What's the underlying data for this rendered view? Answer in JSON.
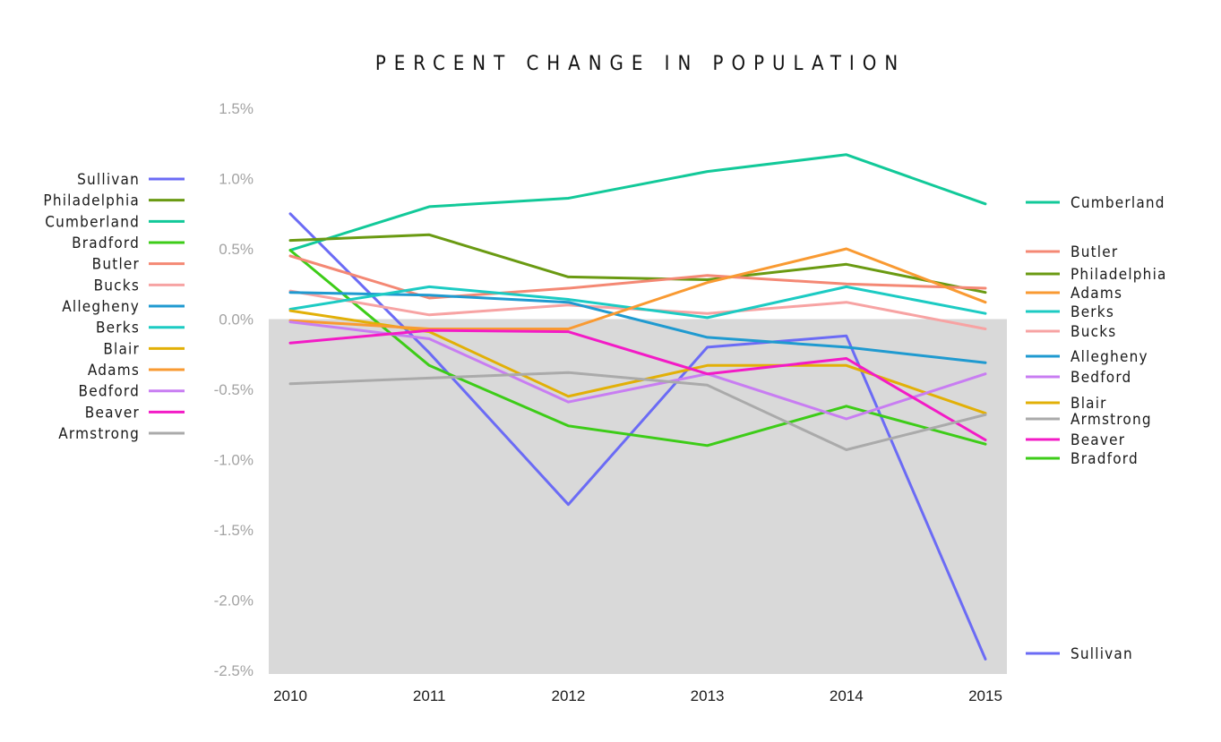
{
  "chart_data": {
    "type": "line",
    "title": "PERCENT CHANGE IN POPULATION",
    "x": [
      "2010",
      "2011",
      "2012",
      "2013",
      "2014",
      "2015"
    ],
    "ylim": [
      -2.5,
      1.5
    ],
    "yticks": [
      1.5,
      1.0,
      0.5,
      0.0,
      -0.5,
      -1.0,
      -1.5,
      -2.0,
      -2.5
    ],
    "ytick_labels": [
      "1.5%",
      "1.0%",
      "0.5%",
      "0.0%",
      "-0.5%",
      "-1.0%",
      "-1.5%",
      "-2.0%",
      "-2.5%"
    ],
    "negative_region_shaded": true,
    "shade_color": "#d9d9d9",
    "legend_left_order": [
      "Sullivan",
      "Philadelphia",
      "Cumberland",
      "Bradford",
      "Butler",
      "Bucks",
      "Allegheny",
      "Berks",
      "Blair",
      "Adams",
      "Bedford",
      "Beaver",
      "Armstrong"
    ],
    "legend_right_order": [
      "Cumberland",
      "Butler",
      "Philadelphia",
      "Adams",
      "Berks",
      "Bucks",
      "Allegheny",
      "Bedford",
      "Blair",
      "Armstrong",
      "Beaver",
      "Bradford",
      "Sullivan"
    ],
    "series": [
      {
        "name": "Sullivan",
        "color": "#6b6bf5",
        "values": [
          0.75,
          -0.24,
          -1.32,
          -0.2,
          -0.12,
          -2.42
        ]
      },
      {
        "name": "Cumberland",
        "color": "#12c999",
        "values": [
          0.49,
          0.8,
          0.86,
          1.05,
          1.17,
          0.82
        ]
      },
      {
        "name": "Philadelphia",
        "color": "#6a9a12",
        "values": [
          0.56,
          0.6,
          0.3,
          0.28,
          0.39,
          0.19
        ]
      },
      {
        "name": "Bradford",
        "color": "#3dcc18",
        "values": [
          0.49,
          -0.33,
          -0.76,
          -0.9,
          -0.62,
          -0.89
        ]
      },
      {
        "name": "Butler",
        "color": "#f48874",
        "values": [
          0.45,
          0.15,
          0.22,
          0.31,
          0.25,
          0.22
        ]
      },
      {
        "name": "Bucks",
        "color": "#f7a3a3",
        "values": [
          0.2,
          0.03,
          0.1,
          0.04,
          0.12,
          -0.07
        ]
      },
      {
        "name": "Allegheny",
        "color": "#1f9ad0",
        "values": [
          0.19,
          0.17,
          0.12,
          -0.13,
          -0.2,
          -0.31
        ]
      },
      {
        "name": "Berks",
        "color": "#1ccbc3",
        "values": [
          0.07,
          0.23,
          0.14,
          0.01,
          0.23,
          0.04
        ]
      },
      {
        "name": "Blair",
        "color": "#e2b007",
        "values": [
          0.06,
          -0.09,
          -0.55,
          -0.33,
          -0.33,
          -0.67
        ]
      },
      {
        "name": "Adams",
        "color": "#f99a32",
        "values": [
          -0.01,
          -0.07,
          -0.07,
          0.26,
          0.5,
          0.12
        ]
      },
      {
        "name": "Bedford",
        "color": "#c87df2",
        "values": [
          -0.02,
          -0.14,
          -0.59,
          -0.39,
          -0.71,
          -0.39
        ]
      },
      {
        "name": "Beaver",
        "color": "#f31bc6",
        "values": [
          -0.17,
          -0.08,
          -0.09,
          -0.39,
          -0.28,
          -0.86
        ]
      },
      {
        "name": "Armstrong",
        "color": "#aaaaaa",
        "values": [
          -0.46,
          -0.42,
          -0.38,
          -0.47,
          -0.93,
          -0.68
        ]
      }
    ]
  }
}
